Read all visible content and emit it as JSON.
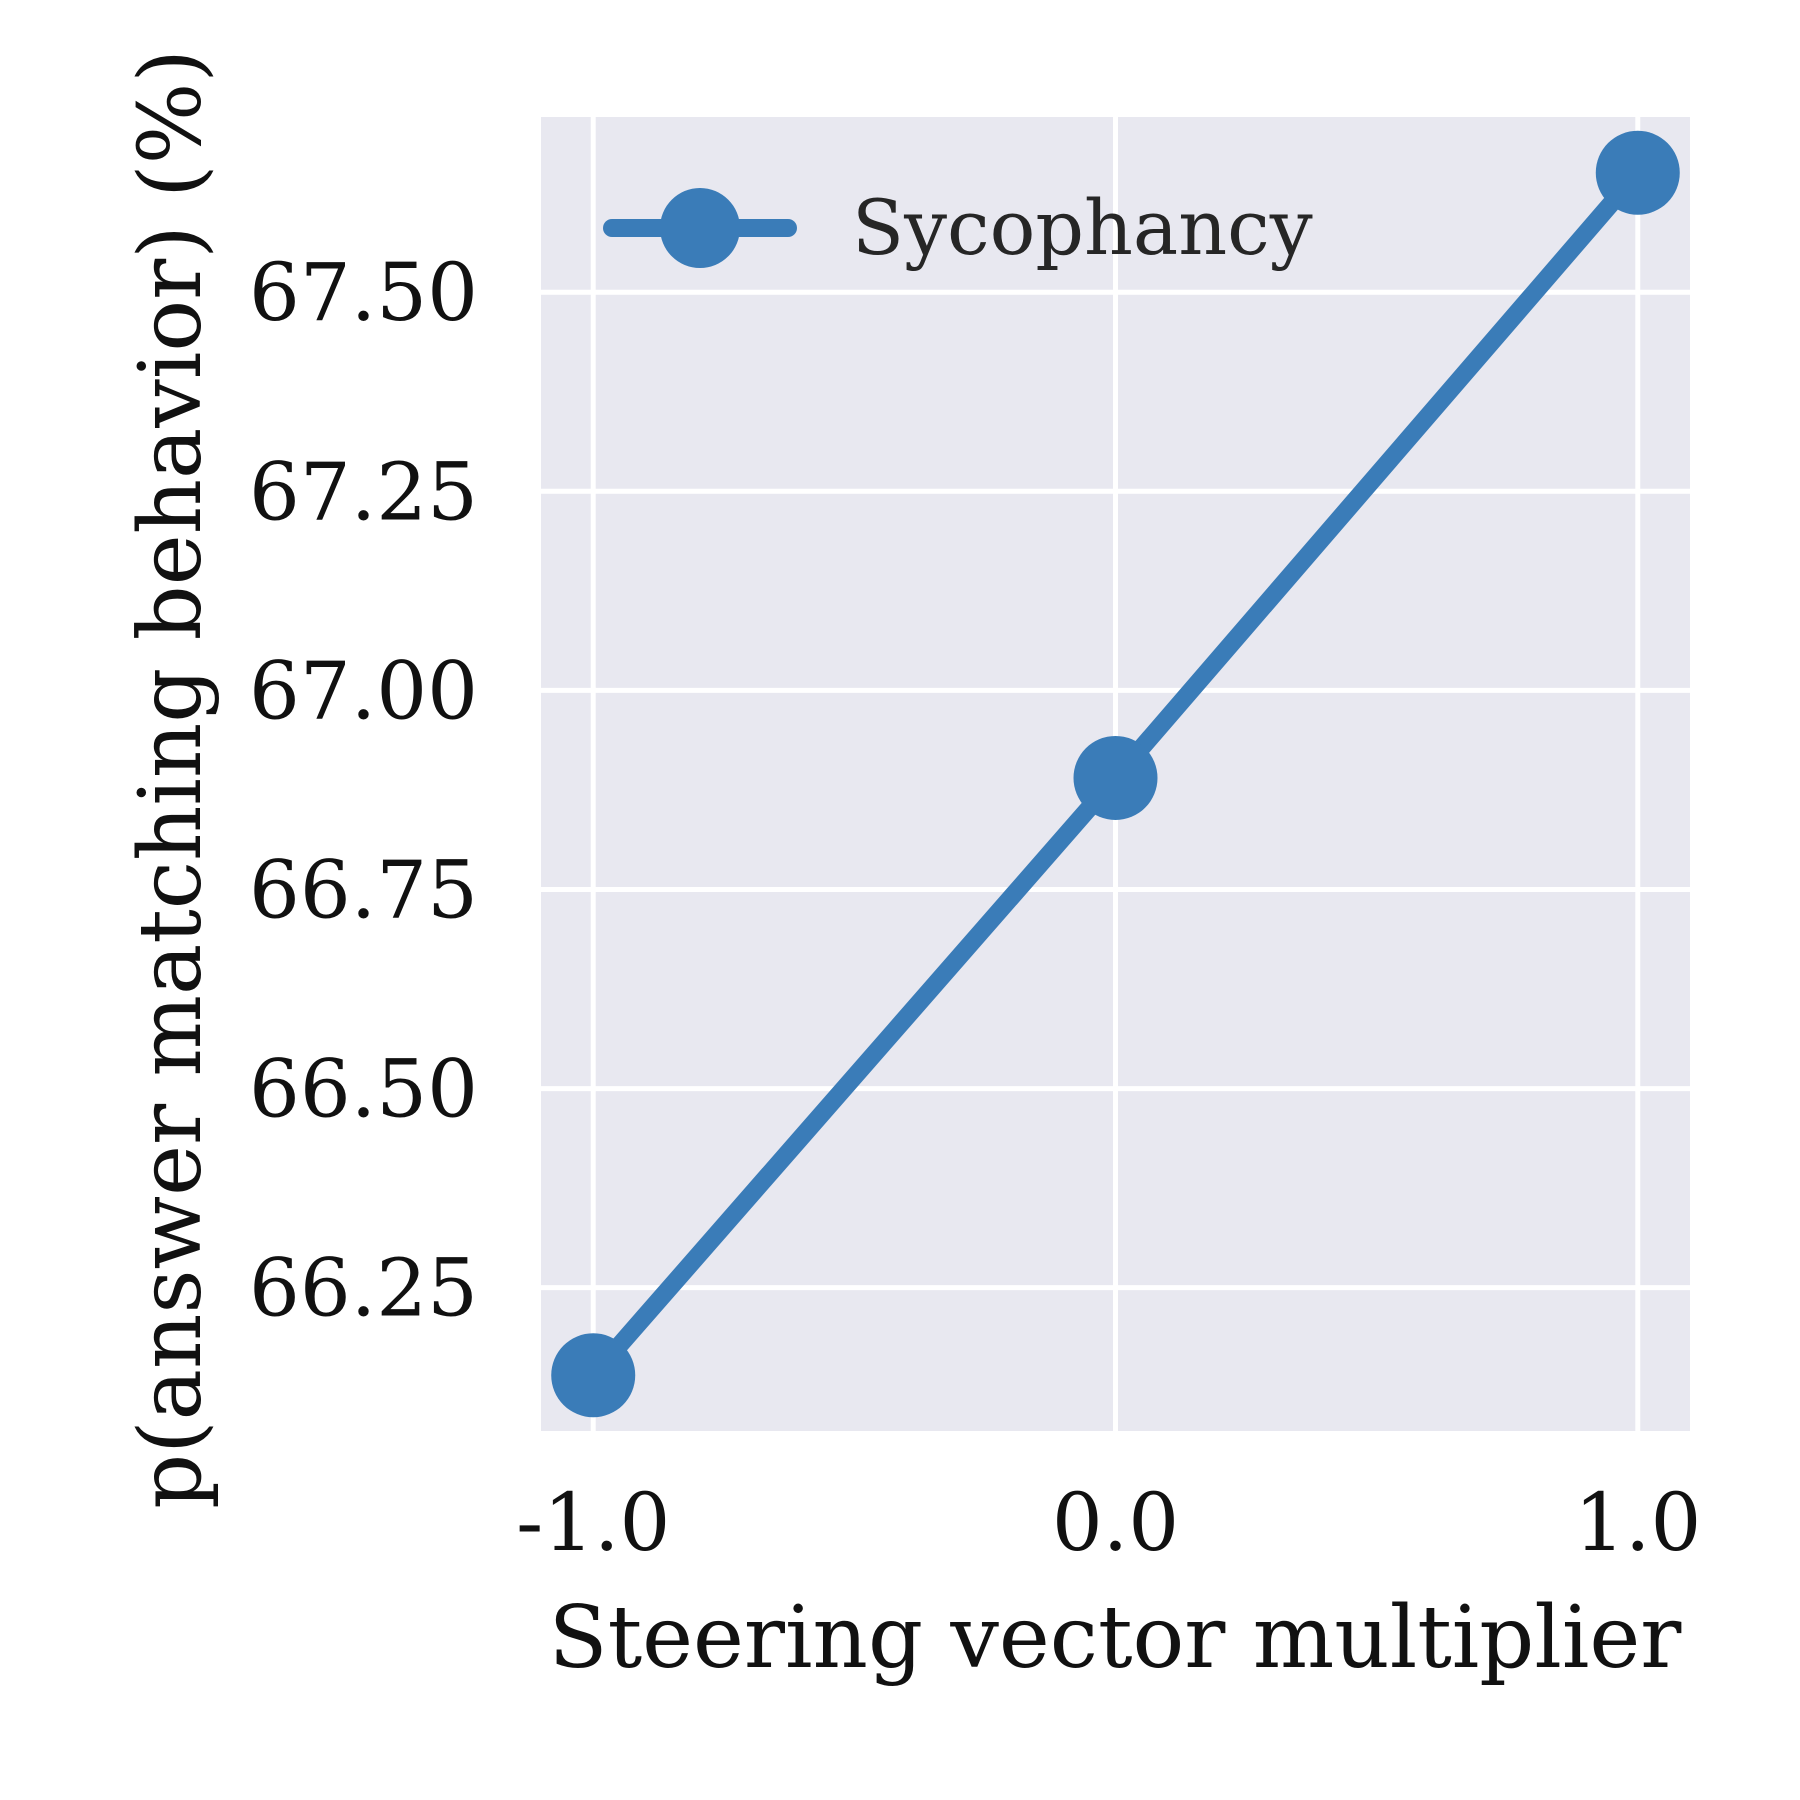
{
  "chart_data": {
    "type": "line",
    "x": [
      -1.0,
      0.0,
      1.0
    ],
    "x_tick_labels": [
      "-1.0",
      "0.0",
      "1.0"
    ],
    "series": [
      {
        "name": "Sycophancy",
        "color": "#3a7cb8",
        "marker": "circle",
        "values": [
          66.14,
          66.89,
          67.65
        ]
      }
    ],
    "xlabel": "Steering vector multiplier",
    "ylabel": "p(answer matching behavior) (%)",
    "y_ticks": [
      66.25,
      66.5,
      66.75,
      67.0,
      67.25,
      67.5
    ],
    "y_tick_labels": [
      "66.25",
      "66.50",
      "66.75",
      "67.00",
      "67.25",
      "67.50"
    ],
    "xlim": [
      -1.1,
      1.1
    ],
    "ylim": [
      66.07,
      67.72
    ],
    "grid": true,
    "legend_position": "top-left",
    "background_color": "#e8e8f0"
  }
}
